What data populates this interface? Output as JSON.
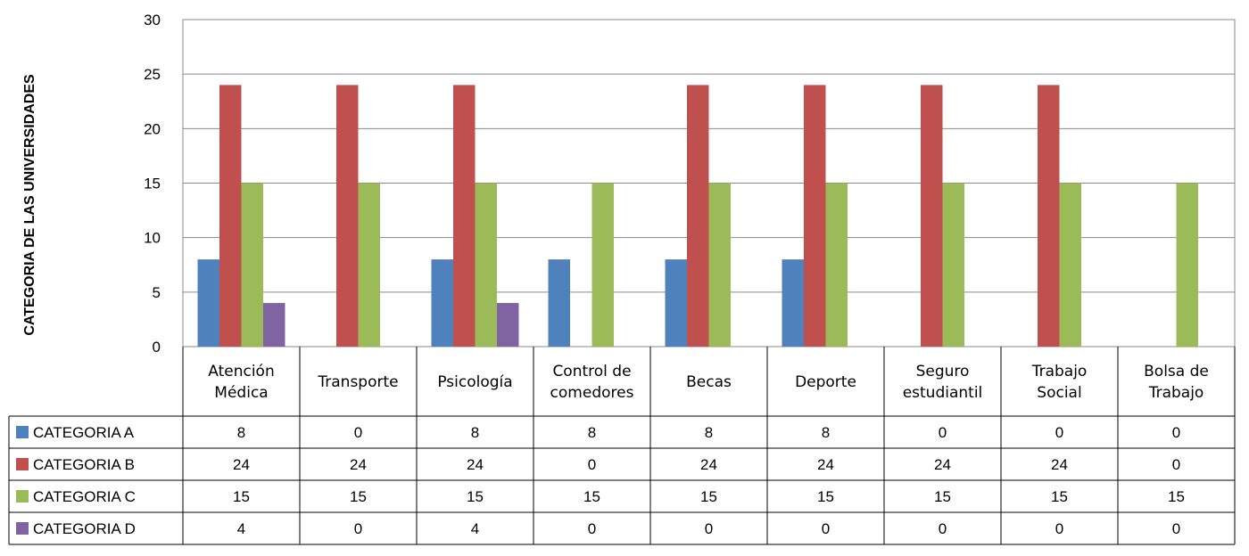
{
  "chart_data": {
    "type": "bar",
    "ylabel": "CATEGORIA DE LAS UNIVERSIDADES",
    "ylim": [
      0,
      30
    ],
    "yticks": [
      0,
      5,
      10,
      15,
      20,
      25,
      30
    ],
    "grid": true,
    "legend": "data-table",
    "categories": [
      [
        "Atención",
        "Médica"
      ],
      [
        "Transporte"
      ],
      [
        "Psicología"
      ],
      [
        "Control de",
        "comedores"
      ],
      [
        "Becas"
      ],
      [
        "Deporte"
      ],
      [
        "Seguro",
        "estudiantil"
      ],
      [
        "Trabajo",
        "Social"
      ],
      [
        "Bolsa de",
        "Trabajo"
      ]
    ],
    "series": [
      {
        "name": "CATEGORIA A",
        "color": "#4F81BD",
        "values": [
          8,
          0,
          8,
          8,
          8,
          8,
          0,
          0,
          0
        ]
      },
      {
        "name": "CATEGORIA B",
        "color": "#C0504D",
        "values": [
          24,
          24,
          24,
          0,
          24,
          24,
          24,
          24,
          0
        ]
      },
      {
        "name": "CATEGORIA C",
        "color": "#9BBB59",
        "values": [
          15,
          15,
          15,
          15,
          15,
          15,
          15,
          15,
          15
        ]
      },
      {
        "name": "CATEGORIA D",
        "color": "#8064A2",
        "values": [
          4,
          0,
          4,
          0,
          0,
          0,
          0,
          0,
          0
        ]
      }
    ]
  }
}
